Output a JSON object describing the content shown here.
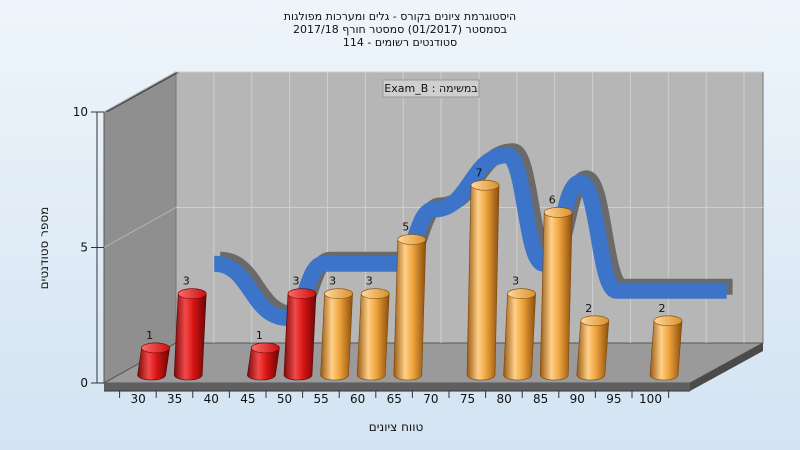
{
  "titles": {
    "line1": "היסטוגרמת ציונים בקורס - גלים ומערכות מפולגות",
    "line2": "בסמסטר  (01/2017)  סמסטר חורף 2017/18",
    "line3": "סטודנטים רשומים - 114"
  },
  "chart_data": {
    "type": "bar",
    "annotation": "Exam_B : במשימה",
    "xlabel": "טווח ציונים",
    "ylabel": "מספר סטודנטים",
    "categories": [
      "30",
      "35",
      "40",
      "45",
      "50",
      "55",
      "60",
      "65",
      "70",
      "75",
      "80",
      "85",
      "90",
      "95",
      "100"
    ],
    "values": [
      1,
      3,
      null,
      1,
      3,
      3,
      3,
      5,
      null,
      7,
      3,
      6,
      2,
      null,
      2
    ],
    "ylim": [
      0,
      10
    ],
    "yticks": [
      0,
      5,
      10
    ],
    "fail_threshold": 55,
    "colors": {
      "fail": "#e01818",
      "pass": "#f0a93a",
      "curve": "#3b74c9",
      "curve_shadow": "#6a6a6a",
      "wall": "#a0a0a0",
      "back_wall": "#b6b6b6"
    }
  }
}
